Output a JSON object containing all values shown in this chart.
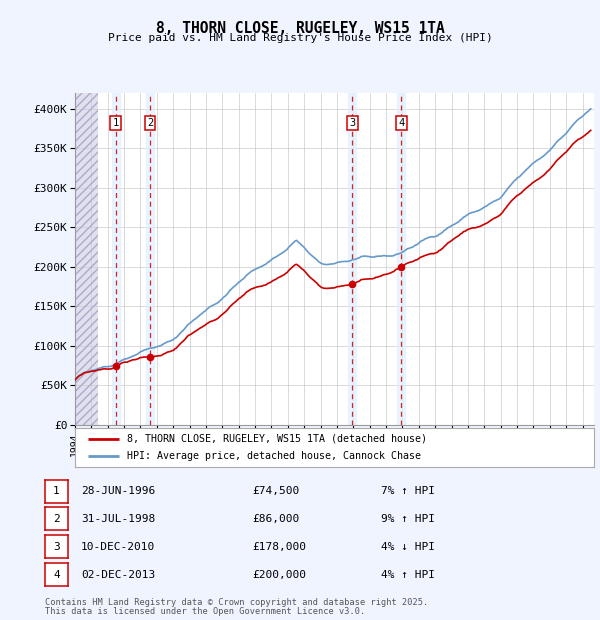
{
  "title": "8, THORN CLOSE, RUGELEY, WS15 1TA",
  "subtitle": "Price paid vs. HM Land Registry's House Price Index (HPI)",
  "ylim": [
    0,
    420000
  ],
  "yticks": [
    0,
    50000,
    100000,
    150000,
    200000,
    250000,
    300000,
    350000,
    400000
  ],
  "ytick_labels": [
    "£0",
    "£50K",
    "£100K",
    "£150K",
    "£200K",
    "£250K",
    "£300K",
    "£350K",
    "£400K"
  ],
  "xlim_start": 1994.0,
  "xlim_end": 2025.7,
  "hatch_end": 1995.4,
  "sale_dates": [
    1996.49,
    1998.58,
    2010.94,
    2013.92
  ],
  "sale_prices": [
    74500,
    86000,
    178000,
    200000
  ],
  "sale_labels": [
    "1",
    "2",
    "3",
    "4"
  ],
  "sale_pct": [
    "7% ↑ HPI",
    "9% ↑ HPI",
    "4% ↓ HPI",
    "4% ↑ HPI"
  ],
  "sale_dates_str": [
    "28-JUN-1996",
    "31-JUL-1998",
    "10-DEC-2010",
    "02-DEC-2013"
  ],
  "sale_prices_str": [
    "£74,500",
    "£86,000",
    "£178,000",
    "£200,000"
  ],
  "legend_line1": "8, THORN CLOSE, RUGELEY, WS15 1TA (detached house)",
  "legend_line2": "HPI: Average price, detached house, Cannock Chase",
  "footer1": "Contains HM Land Registry data © Crown copyright and database right 2025.",
  "footer2": "This data is licensed under the Open Government Licence v3.0.",
  "bg_color": "#f0f4ff",
  "plot_bg": "#ffffff",
  "red_color": "#cc0000",
  "blue_color": "#6699cc",
  "shade_color": "#ddeeff"
}
